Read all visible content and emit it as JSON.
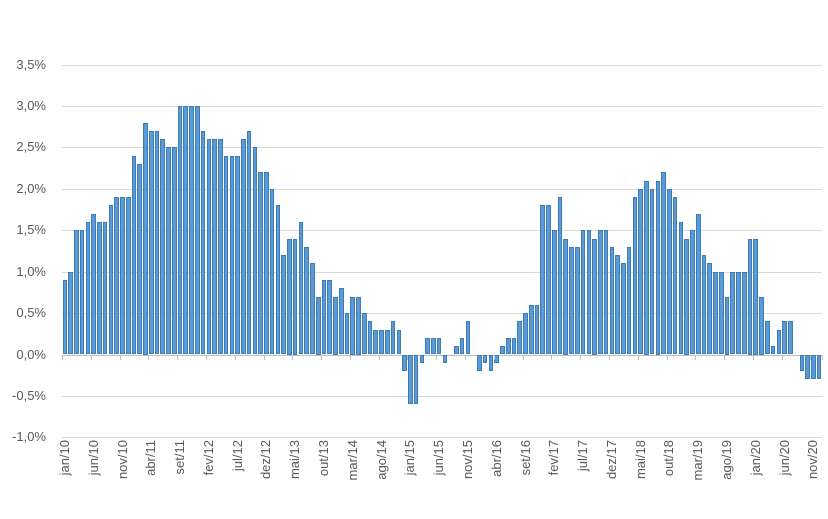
{
  "chart_data": {
    "type": "bar",
    "title": "",
    "legend": "none",
    "grid": "horizontal",
    "number_format": "comma-decimal-percent",
    "ylim": [
      -1.0,
      3.5
    ],
    "bar_color": "#5B9BD5",
    "bar_border_color": "#3E7CB9",
    "gridline_color": "#D9D9D9",
    "axis_line_color": "#BFBFBF",
    "label_color": "#595959",
    "y_tick_values": [
      3.5,
      3.0,
      2.5,
      2.0,
      1.5,
      1.0,
      0.5,
      0.0,
      -0.5,
      -1.0
    ],
    "y_tick_labels": [
      "3,5%",
      "3,0%",
      "2,5%",
      "2,0%",
      "1,5%",
      "1,0%",
      "0,5%",
      "0,0%",
      "-0,5%",
      "-1,0%"
    ],
    "x_tick_labels": [
      "jan/10",
      "jun/10",
      "nov/10",
      "abr/11",
      "set/11",
      "fev/12",
      "jul/12",
      "dez/12",
      "mai/13",
      "out/13",
      "mar/14",
      "ago/14",
      "jan/15",
      "jun/15",
      "nov/15",
      "abr/16",
      "set/16",
      "fev/17",
      "jul/17",
      "dez/17",
      "mai/18",
      "out/18",
      "mar/19",
      "ago/19",
      "jan/20",
      "jun/20",
      "nov/20"
    ],
    "categories": [
      "jan/10",
      "fev/10",
      "mar/10",
      "abr/10",
      "mai/10",
      "jun/10",
      "jul/10",
      "ago/10",
      "set/10",
      "out/10",
      "nov/10",
      "dez/10",
      "jan/11",
      "fev/11",
      "mar/11",
      "abr/11",
      "mai/11",
      "jun/11",
      "jul/11",
      "ago/11",
      "set/11",
      "out/11",
      "nov/11",
      "dez/11",
      "jan/12",
      "fev/12",
      "mar/12",
      "abr/12",
      "mai/12",
      "jun/12",
      "jul/12",
      "ago/12",
      "set/12",
      "out/12",
      "nov/12",
      "dez/12",
      "jan/13",
      "fev/13",
      "mar/13",
      "abr/13",
      "mai/13",
      "jun/13",
      "jul/13",
      "ago/13",
      "set/13",
      "out/13",
      "nov/13",
      "dez/13",
      "jan/14",
      "fev/14",
      "mar/14",
      "abr/14",
      "mai/14",
      "jun/14",
      "jul/14",
      "ago/14",
      "set/14",
      "out/14",
      "nov/14",
      "dez/14",
      "jan/15",
      "fev/15",
      "mar/15",
      "abr/15",
      "mai/15",
      "jun/15",
      "jul/15",
      "ago/15",
      "set/15",
      "out/15",
      "nov/15",
      "dez/15",
      "jan/16",
      "fev/16",
      "mar/16",
      "abr/16",
      "mai/16",
      "jun/16",
      "jul/16",
      "ago/16",
      "set/16",
      "out/16",
      "nov/16",
      "dez/16",
      "jan/17",
      "fev/17",
      "mar/17",
      "abr/17",
      "mai/17",
      "jun/17",
      "jul/17",
      "ago/17",
      "set/17",
      "out/17",
      "nov/17",
      "dez/17",
      "jan/18",
      "fev/18",
      "mar/18",
      "abr/18",
      "mai/18",
      "jun/18",
      "jul/18",
      "ago/18",
      "set/18",
      "out/18",
      "nov/18",
      "dez/18",
      "jan/19",
      "fev/19",
      "mar/19",
      "abr/19",
      "mai/19",
      "jun/19",
      "jul/19",
      "ago/19",
      "set/19",
      "out/19",
      "nov/19",
      "dez/19",
      "jan/20",
      "fev/20",
      "mar/20",
      "abr/20",
      "mai/20",
      "jun/20",
      "jul/20",
      "ago/20",
      "set/20",
      "out/20",
      "nov/20",
      "dez/20"
    ],
    "values": [
      0.9,
      1.0,
      1.5,
      1.5,
      1.6,
      1.7,
      1.6,
      1.6,
      1.8,
      1.9,
      1.9,
      1.9,
      2.4,
      2.3,
      2.8,
      2.7,
      2.7,
      2.6,
      2.5,
      2.5,
      3.0,
      3.0,
      3.0,
      3.0,
      2.7,
      2.6,
      2.6,
      2.6,
      2.4,
      2.4,
      2.4,
      2.6,
      2.7,
      2.5,
      2.2,
      2.2,
      2.0,
      1.8,
      1.2,
      1.4,
      1.4,
      1.6,
      1.3,
      1.1,
      0.7,
      0.9,
      0.9,
      0.7,
      0.8,
      0.5,
      0.7,
      0.7,
      0.5,
      0.4,
      0.3,
      0.3,
      0.3,
      0.4,
      0.3,
      -0.2,
      -0.6,
      -0.6,
      -0.1,
      0.2,
      0.2,
      0.2,
      -0.1,
      0.0,
      0.1,
      0.2,
      0.4,
      0.0,
      -0.2,
      -0.1,
      -0.2,
      -0.1,
      0.1,
      0.2,
      0.2,
      0.4,
      0.5,
      0.6,
      0.6,
      1.8,
      1.8,
      1.5,
      1.9,
      1.4,
      1.3,
      1.3,
      1.5,
      1.5,
      1.4,
      1.5,
      1.5,
      1.3,
      1.2,
      1.1,
      1.3,
      1.9,
      2.0,
      2.1,
      2.0,
      2.1,
      2.2,
      2.0,
      1.9,
      1.6,
      1.4,
      1.5,
      1.7,
      1.2,
      1.1,
      1.0,
      1.0,
      0.7,
      1.0,
      1.0,
      1.0,
      1.4,
      1.4,
      0.7,
      0.4,
      0.1,
      0.3,
      0.4,
      0.4,
      0.0,
      -0.2,
      -0.3,
      -0.3,
      -0.3
    ]
  }
}
